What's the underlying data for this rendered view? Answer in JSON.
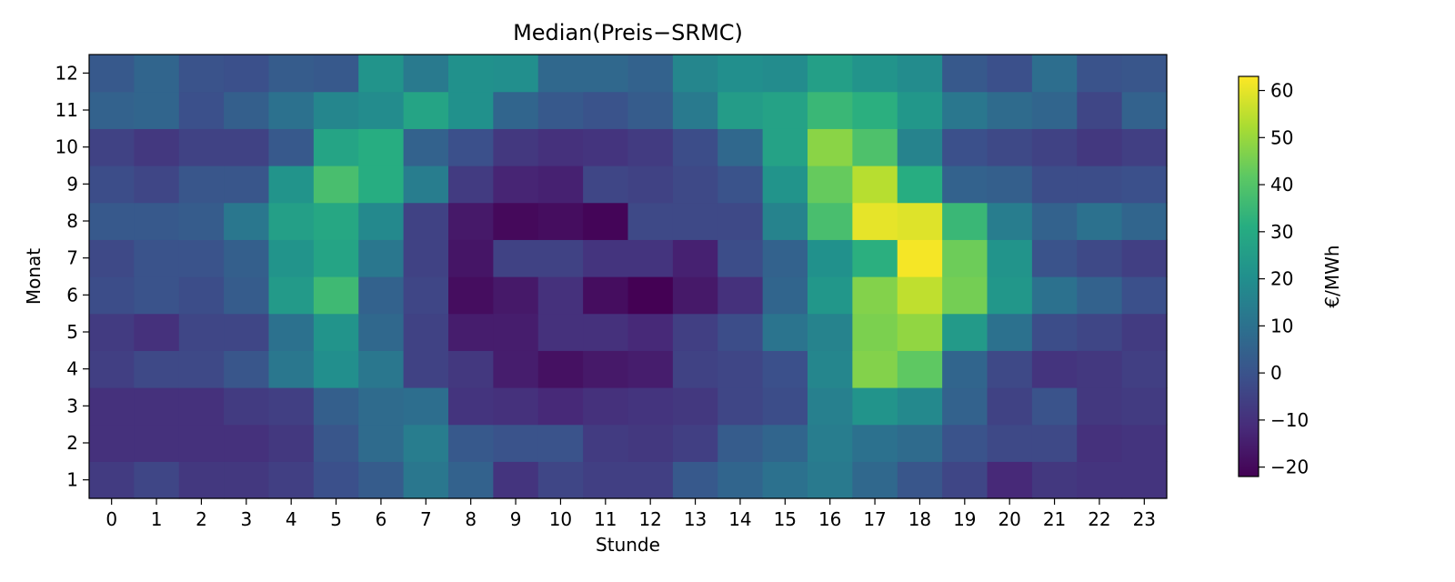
{
  "chart_data": {
    "type": "heatmap",
    "title": "Median(Preis−SRMC)",
    "xlabel": "Stunde",
    "ylabel": "Monat",
    "colorbar_label": "€/MWh",
    "colormap": "viridis",
    "vmin": -22,
    "vmax": 63,
    "colorbar_ticks": [
      -20,
      -10,
      0,
      10,
      20,
      30,
      40,
      50,
      60
    ],
    "colorbar_tick_labels": [
      "−20",
      "−10",
      "0",
      "10",
      "20",
      "30",
      "40",
      "50",
      "60"
    ],
    "x": [
      "0",
      "1",
      "2",
      "3",
      "4",
      "5",
      "6",
      "7",
      "8",
      "9",
      "10",
      "11",
      "12",
      "13",
      "14",
      "15",
      "16",
      "17",
      "18",
      "19",
      "20",
      "21",
      "22",
      "23"
    ],
    "y": [
      "1",
      "2",
      "3",
      "4",
      "5",
      "6",
      "7",
      "8",
      "9",
      "10",
      "11",
      "12"
    ],
    "values": [
      [
        -7,
        -4,
        -8,
        -8,
        -6,
        -1,
        3,
        12,
        5,
        -9,
        -4,
        -6,
        -6,
        2,
        6,
        10,
        13,
        7,
        1,
        -4,
        -12,
        -8,
        -9,
        -9
      ],
      [
        -10,
        -10,
        -10,
        -10,
        -8,
        1,
        8,
        14,
        2,
        0,
        0,
        -7,
        -8,
        -6,
        3,
        6,
        14,
        10,
        8,
        0,
        -3,
        -3,
        -10,
        -9
      ],
      [
        -10,
        -10,
        -10,
        -7,
        -6,
        4,
        8,
        9,
        -9,
        -10,
        -12,
        -10,
        -9,
        -8,
        -4,
        -2,
        15,
        22,
        18,
        5,
        -5,
        0,
        -8,
        -7
      ],
      [
        -6,
        -3,
        -3,
        1,
        12,
        20,
        12,
        -5,
        -8,
        -15,
        -18,
        -16,
        -15,
        -5,
        -4,
        -1,
        17,
        47,
        42,
        6,
        -3,
        -9,
        -8,
        -6
      ],
      [
        -7,
        -10,
        -4,
        -4,
        10,
        22,
        7,
        -5,
        -15,
        -15,
        -10,
        -10,
        -12,
        -6,
        -2,
        11,
        16,
        46,
        49,
        24,
        10,
        -2,
        -4,
        -7
      ],
      [
        -2,
        0,
        -2,
        3,
        24,
        36,
        5,
        -4,
        -19,
        -16,
        -10,
        -19,
        -22,
        -16,
        -10,
        6,
        23,
        47,
        55,
        45,
        23,
        10,
        5,
        -1
      ],
      [
        -3,
        0,
        0,
        4,
        22,
        28,
        12,
        -5,
        -17,
        -5,
        -5,
        -9,
        -9,
        -14,
        -2,
        5,
        21,
        32,
        62,
        44,
        22,
        0,
        -3,
        -6
      ],
      [
        2,
        2,
        3,
        12,
        26,
        29,
        18,
        -5,
        -16,
        -20,
        -19,
        -21,
        -3,
        -3,
        -3,
        16,
        38,
        60,
        59,
        35,
        14,
        5,
        10,
        6
      ],
      [
        -2,
        -4,
        1,
        1,
        22,
        38,
        31,
        14,
        -7,
        -13,
        -14,
        -4,
        -5,
        -3,
        0,
        22,
        43,
        54,
        31,
        5,
        4,
        -2,
        -2,
        -1
      ],
      [
        -5,
        -8,
        -5,
        -5,
        2,
        28,
        31,
        5,
        -1,
        -8,
        -10,
        -9,
        -7,
        -2,
        7,
        27,
        48,
        39,
        16,
        -1,
        -3,
        -5,
        -8,
        -6
      ],
      [
        5,
        6,
        -1,
        4,
        10,
        17,
        19,
        28,
        21,
        6,
        2,
        0,
        3,
        13,
        25,
        27,
        35,
        32,
        23,
        12,
        8,
        6,
        -4,
        5
      ],
      [
        2,
        6,
        0,
        -1,
        3,
        2,
        22,
        13,
        21,
        20,
        7,
        7,
        5,
        17,
        20,
        19,
        26,
        22,
        19,
        2,
        -1,
        9,
        0,
        1
      ]
    ]
  }
}
